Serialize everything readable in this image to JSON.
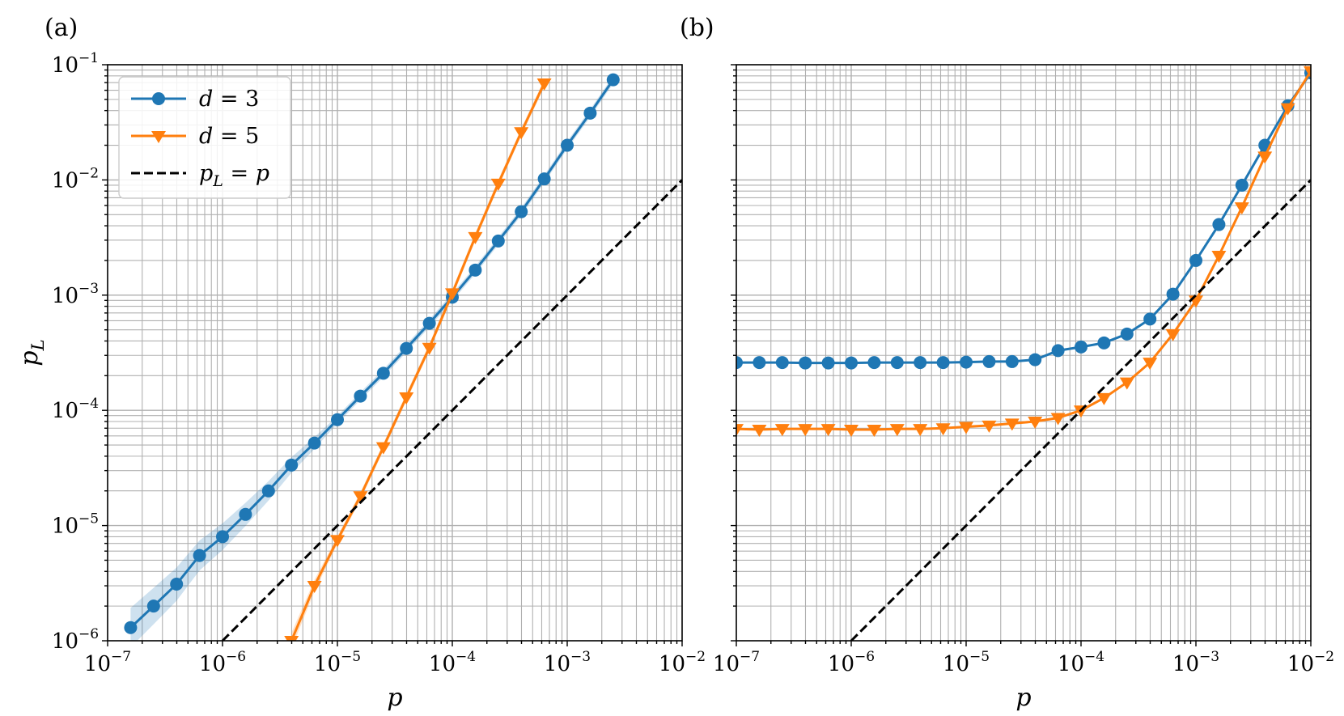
{
  "chart_data": [
    {
      "panel_label": "(a)",
      "type": "line",
      "xscale": "log",
      "yscale": "log",
      "xlim": [
        1e-07,
        0.01
      ],
      "ylim": [
        1e-06,
        0.1
      ],
      "xlabel": "p",
      "ylabel": "p_L",
      "grid": true,
      "legend": {
        "placement": "top-left",
        "entries": [
          "d = 3",
          "d = 5",
          "p_L = p"
        ]
      },
      "series": [
        {
          "name": "d = 3",
          "color": "#1f77b4",
          "marker": "circle",
          "band": true,
          "x": [
            1.585e-07,
            2.512e-07,
            3.981e-07,
            6.31e-07,
            1e-06,
            1.585e-06,
            2.512e-06,
            3.981e-06,
            6.31e-06,
            1e-05,
            1.585e-05,
            2.512e-05,
            3.981e-05,
            6.31e-05,
            0.0001,
            0.0001585,
            0.0002512,
            0.0003981,
            0.000631,
            0.001,
            0.001585,
            0.002512
          ],
          "y": [
            1.3e-06,
            2e-06,
            3.1e-06,
            5.5e-06,
            8e-06,
            1.25e-05,
            2e-05,
            3.35e-05,
            5.2e-05,
            8.3e-05,
            0.000133,
            0.00021,
            0.000345,
            0.00057,
            0.00096,
            0.00165,
            0.00295,
            0.0053,
            0.0102,
            0.02,
            0.038,
            0.074
          ]
        },
        {
          "name": "d = 5",
          "color": "#ff7f0e",
          "marker": "triangle-down",
          "band": true,
          "x": [
            3.981e-06,
            6.31e-06,
            1e-05,
            1.585e-05,
            2.512e-05,
            3.981e-05,
            6.31e-05,
            0.0001,
            0.0001585,
            0.0002512,
            0.0003981,
            0.000631
          ],
          "y": [
            1e-06,
            3e-06,
            7.5e-06,
            1.8e-05,
            4.8e-05,
            0.00013,
            0.00035,
            0.00104,
            0.0032,
            0.0093,
            0.026,
            0.069
          ]
        },
        {
          "name": "p_L = p",
          "color": "#000000",
          "style": "dashed",
          "x": [
            1e-06,
            0.01
          ],
          "y": [
            1e-06,
            0.01
          ]
        }
      ]
    },
    {
      "panel_label": "(b)",
      "type": "line",
      "xscale": "log",
      "yscale": "log",
      "xlim": [
        1e-07,
        0.01
      ],
      "ylim": [
        1e-06,
        0.1
      ],
      "xlabel": "p",
      "grid": true,
      "series": [
        {
          "name": "d = 3",
          "color": "#1f77b4",
          "marker": "circle",
          "x": [
            1e-07,
            1.585e-07,
            2.512e-07,
            3.981e-07,
            6.31e-07,
            1e-06,
            1.585e-06,
            2.512e-06,
            3.981e-06,
            6.31e-06,
            1e-05,
            1.585e-05,
            2.512e-05,
            3.981e-05,
            6.31e-05,
            0.0001,
            0.0001585,
            0.0002512,
            0.0003981,
            0.000631,
            0.001,
            0.001585,
            0.002512,
            0.003981,
            0.00631,
            0.01
          ],
          "y": [
            0.00026,
            0.00026,
            0.00026,
            0.000258,
            0.000258,
            0.000258,
            0.00026,
            0.00026,
            0.00026,
            0.00026,
            0.000262,
            0.000265,
            0.000265,
            0.000275,
            0.00033,
            0.000355,
            0.000385,
            0.00046,
            0.00062,
            0.00102,
            0.002,
            0.0041,
            0.009,
            0.02,
            0.044,
            0.085
          ]
        },
        {
          "name": "d = 5",
          "color": "#ff7f0e",
          "marker": "triangle-down",
          "x": [
            1e-07,
            1.585e-07,
            2.512e-07,
            3.981e-07,
            6.31e-07,
            1e-06,
            1.585e-06,
            2.512e-06,
            3.981e-06,
            6.31e-06,
            1e-05,
            1.585e-05,
            2.512e-05,
            3.981e-05,
            6.31e-05,
            0.0001,
            0.0001585,
            0.0002512,
            0.0003981,
            0.000631,
            0.001,
            0.001585,
            0.002512,
            0.003981,
            0.00631,
            0.01
          ],
          "y": [
            6.9e-05,
            6.8e-05,
            6.9e-05,
            6.9e-05,
            6.9e-05,
            6.8e-05,
            6.8e-05,
            6.9e-05,
            6.9e-05,
            7e-05,
            7.2e-05,
            7.4e-05,
            7.7e-05,
            8e-05,
            8.6e-05,
            0.0001,
            0.000128,
            0.000175,
            0.00026,
            0.00046,
            0.0009,
            0.0022,
            0.0058,
            0.016,
            0.042,
            0.088
          ]
        },
        {
          "name": "p_L = p",
          "color": "#000000",
          "style": "dashed",
          "x": [
            1e-06,
            0.01
          ],
          "y": [
            1e-06,
            0.01
          ]
        }
      ]
    }
  ]
}
